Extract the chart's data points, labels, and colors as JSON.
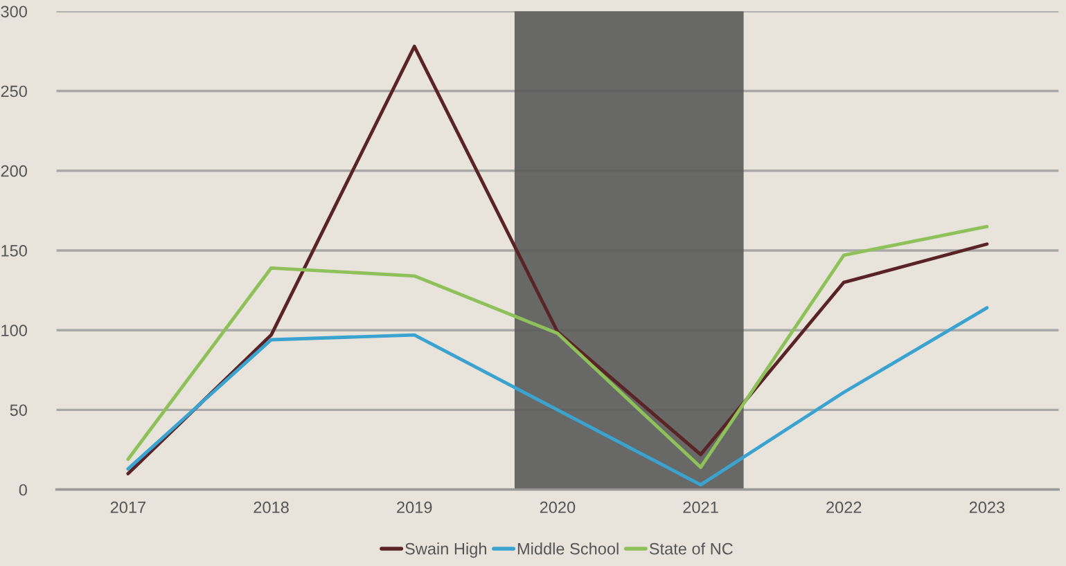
{
  "chart_data": {
    "type": "line",
    "x": [
      2017,
      2018,
      2019,
      2020,
      2021,
      2022,
      2023
    ],
    "xlim": [
      2016.5,
      2023.5
    ],
    "xticks": [
      2017,
      2018,
      2019,
      2020,
      2021,
      2022,
      2023
    ],
    "ylim": [
      0,
      300
    ],
    "yticks": [
      0,
      50,
      100,
      150,
      200,
      250,
      300
    ],
    "series": [
      {
        "name": "Swain High",
        "color": "#5a2326",
        "values": [
          10,
          97,
          278,
          99,
          22,
          130,
          154
        ]
      },
      {
        "name": "Middle School",
        "color": "#3ba3d0",
        "values": [
          13,
          94,
          97,
          50,
          3,
          61,
          114
        ]
      },
      {
        "name": "State of NC",
        "color": "#8fc15a",
        "values": [
          19,
          139,
          134,
          98,
          14,
          147,
          165
        ]
      }
    ],
    "bands": [
      {
        "axis": "x",
        "from": 2019.7,
        "to": 2021.3,
        "color": "#5a5a5a"
      }
    ],
    "grid": "y",
    "legend": "bottom",
    "marker": "none",
    "line_style": "solid"
  }
}
